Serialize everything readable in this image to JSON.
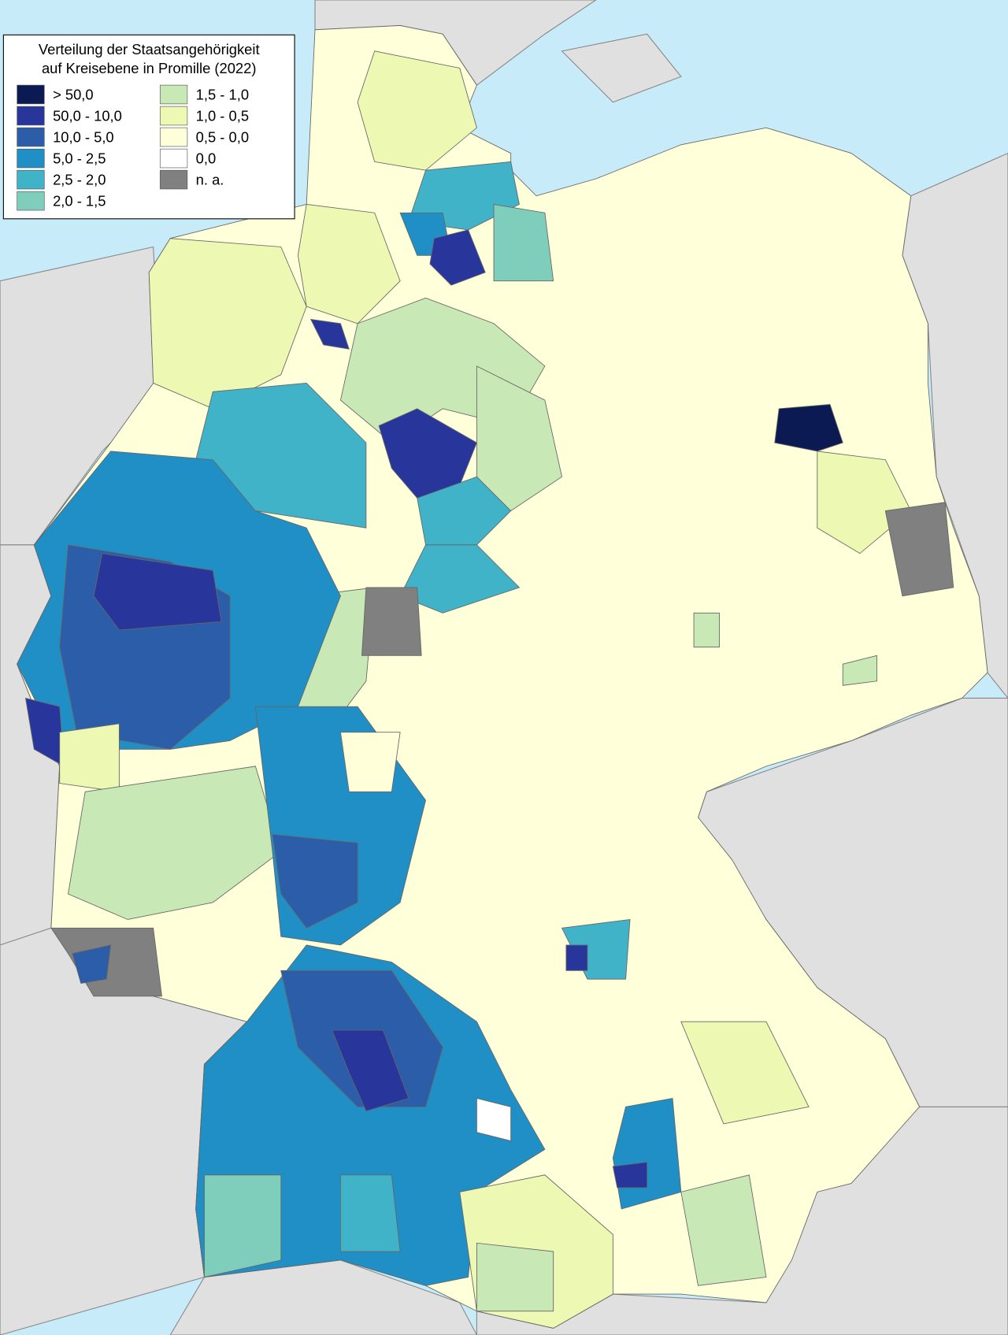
{
  "legend": {
    "title": [
      "Verteilung der Staatsangehörigkeit",
      "auf Kreisebene in Promille (2022)"
    ],
    "items": [
      {
        "label": "> 50,0",
        "color": "#0b1a52"
      },
      {
        "label": "50,0 - 10,0",
        "color": "#28369c"
      },
      {
        "label": "10,0 - 5,0",
        "color": "#2b5da9"
      },
      {
        "label": "5,0 - 2,5",
        "color": "#1f8fc5"
      },
      {
        "label": "2,5 - 2,0",
        "color": "#40b3c9"
      },
      {
        "label": "2,0 - 1,5",
        "color": "#7fcebb"
      },
      {
        "label": "1,5 - 1,0",
        "color": "#c8e9b5"
      },
      {
        "label": "1,0 - 0,5",
        "color": "#edf8b2"
      },
      {
        "label": "0,5 - 0,0",
        "color": "#ffffda"
      },
      {
        "label": "0,0",
        "color": "#ffffff"
      },
      {
        "label": "n. a.",
        "color": "#808080"
      }
    ]
  }
}
